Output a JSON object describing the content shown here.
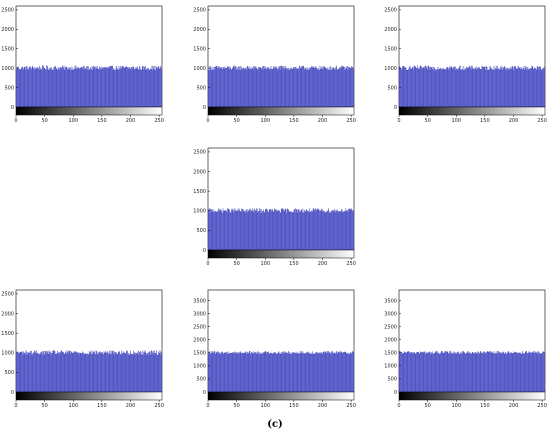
{
  "caption": "(c)",
  "colors": {
    "bar": "#5a5fd6",
    "bar_stroke": "#2f33a8",
    "axis": "#000000"
  },
  "chart_data": [
    {
      "type": "bar",
      "name": "",
      "x_range": [
        0,
        255
      ],
      "xticks": [
        0,
        50,
        100,
        150,
        200,
        250
      ],
      "ylim": [
        0,
        2600
      ],
      "yticks": [
        0,
        500,
        1000,
        1500,
        2000,
        2500
      ],
      "mean_count": 1000,
      "variation": 60,
      "colorbar": "grayscale",
      "grid": false
    },
    {
      "type": "bar",
      "name": "",
      "x_range": [
        0,
        255
      ],
      "xticks": [
        0,
        50,
        100,
        150,
        200,
        250
      ],
      "ylim": [
        0,
        2600
      ],
      "yticks": [
        0,
        500,
        1000,
        1500,
        2000,
        2500
      ],
      "mean_count": 1000,
      "variation": 60,
      "colorbar": "grayscale",
      "grid": false
    },
    {
      "type": "bar",
      "name": "",
      "x_range": [
        0,
        255
      ],
      "xticks": [
        0,
        50,
        100,
        150,
        200,
        250
      ],
      "ylim": [
        0,
        2600
      ],
      "yticks": [
        0,
        500,
        1000,
        1500,
        2000,
        2500
      ],
      "mean_count": 1000,
      "variation": 60,
      "colorbar": "grayscale",
      "grid": false
    },
    {
      "type": "bar",
      "name": "",
      "x_range": [
        0,
        255
      ],
      "xticks": [
        0,
        50,
        100,
        150,
        200,
        250
      ],
      "ylim": [
        0,
        2600
      ],
      "yticks": [
        0,
        500,
        1000,
        1500,
        2000,
        2500
      ],
      "mean_count": 1000,
      "variation": 60,
      "colorbar": "grayscale",
      "grid": false
    },
    {
      "type": "bar",
      "name": "",
      "x_range": [
        0,
        255
      ],
      "xticks": [
        0,
        50,
        100,
        150,
        200,
        250
      ],
      "ylim": [
        0,
        2600
      ],
      "yticks": [
        0,
        500,
        1000,
        1500,
        2000,
        2500
      ],
      "mean_count": 1000,
      "variation": 60,
      "colorbar": "grayscale",
      "grid": false
    },
    {
      "type": "bar",
      "name": "",
      "x_range": [
        0,
        255
      ],
      "xticks": [
        0,
        50,
        100,
        150,
        200,
        250
      ],
      "ylim": [
        0,
        3900
      ],
      "yticks": [
        0,
        500,
        1000,
        1500,
        2000,
        2500,
        3000,
        3500
      ],
      "mean_count": 1500,
      "variation": 60,
      "colorbar": "grayscale",
      "grid": false
    },
    {
      "type": "bar",
      "name": "",
      "x_range": [
        0,
        255
      ],
      "xticks": [
        0,
        50,
        100,
        150,
        200,
        250
      ],
      "ylim": [
        0,
        3900
      ],
      "yticks": [
        0,
        500,
        1000,
        1500,
        2000,
        2500,
        3000,
        3500
      ],
      "mean_count": 1500,
      "variation": 60,
      "colorbar": "grayscale",
      "grid": false
    }
  ]
}
